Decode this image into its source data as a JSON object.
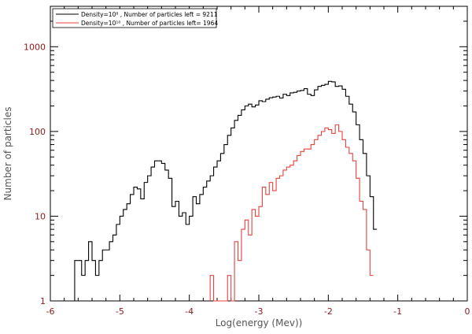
{
  "chart_data": {
    "type": "line",
    "style": "step histogram",
    "xlabel": "Log(energy (Mev))",
    "ylabel": "Number of particles",
    "xlim": [
      -6,
      0
    ],
    "ylim": [
      1,
      3000
    ],
    "yscale": "log",
    "x_ticks": [
      "-6",
      "-5",
      "-4",
      "-3",
      "-2",
      "-1",
      "0"
    ],
    "y_ticks": [
      "1",
      "10",
      "100",
      "1000"
    ],
    "grid": false,
    "legend_position": "top-left",
    "series": [
      {
        "name": "Density=10⁸ , Number of particles left = 9211",
        "color": "#000000",
        "x": [
          -5.65,
          -5.6,
          -5.55,
          -5.5,
          -5.45,
          -5.4,
          -5.35,
          -5.3,
          -5.25,
          -5.2,
          -5.15,
          -5.1,
          -5.05,
          -5.0,
          -4.95,
          -4.9,
          -4.85,
          -4.8,
          -4.75,
          -4.7,
          -4.65,
          -4.6,
          -4.55,
          -4.5,
          -4.45,
          -4.4,
          -4.35,
          -4.3,
          -4.25,
          -4.2,
          -4.15,
          -4.1,
          -4.05,
          -4.0,
          -3.95,
          -3.9,
          -3.85,
          -3.8,
          -3.75,
          -3.7,
          -3.65,
          -3.6,
          -3.55,
          -3.5,
          -3.45,
          -3.4,
          -3.35,
          -3.3,
          -3.25,
          -3.2,
          -3.15,
          -3.1,
          -3.05,
          -3.0,
          -2.95,
          -2.9,
          -2.85,
          -2.8,
          -2.75,
          -2.7,
          -2.65,
          -2.6,
          -2.55,
          -2.5,
          -2.45,
          -2.4,
          -2.35,
          -2.3,
          -2.25,
          -2.2,
          -2.15,
          -2.1,
          -2.05,
          -2.0,
          -1.95,
          -1.9,
          -1.85,
          -1.8,
          -1.75,
          -1.7,
          -1.65,
          -1.6,
          -1.55,
          -1.5,
          -1.45,
          -1.4,
          -1.35
        ],
        "values": [
          3,
          3,
          2,
          3,
          5,
          3,
          2,
          3,
          4,
          4,
          5,
          6,
          8,
          10,
          12,
          14,
          18,
          22,
          21,
          16,
          25,
          30,
          38,
          45,
          45,
          42,
          35,
          28,
          13,
          15,
          10,
          11,
          8,
          10,
          17,
          14,
          18,
          22,
          26,
          30,
          38,
          45,
          55,
          70,
          90,
          110,
          135,
          155,
          180,
          200,
          210,
          195,
          205,
          230,
          225,
          240,
          250,
          255,
          260,
          248,
          275,
          265,
          285,
          290,
          300,
          305,
          320,
          275,
          265,
          310,
          340,
          350,
          360,
          390,
          385,
          340,
          345,
          315,
          260,
          210,
          170,
          120,
          80,
          55,
          30,
          17,
          7
        ],
        "end_x": -1.3
      },
      {
        "name": "Density=10¹⁰ , Number of particles left= 1964",
        "color": "#e8413c",
        "x": [
          -3.7,
          -3.65,
          -3.6,
          -3.55,
          -3.5,
          -3.45,
          -3.4,
          -3.35,
          -3.3,
          -3.25,
          -3.2,
          -3.15,
          -3.1,
          -3.05,
          -3.0,
          -2.95,
          -2.9,
          -2.85,
          -2.8,
          -2.75,
          -2.7,
          -2.65,
          -2.6,
          -2.55,
          -2.5,
          -2.45,
          -2.4,
          -2.35,
          -2.3,
          -2.25,
          -2.2,
          -2.15,
          -2.1,
          -2.05,
          -2.0,
          -1.95,
          -1.9,
          -1.85,
          -1.8,
          -1.75,
          -1.7,
          -1.65,
          -1.6,
          -1.55,
          -1.5,
          -1.45,
          -1.4
        ],
        "values": [
          2,
          1,
          1,
          1,
          1,
          2,
          1,
          5,
          3,
          7,
          9,
          6,
          12,
          10,
          13,
          22,
          18,
          25,
          20,
          28,
          30,
          35,
          38,
          40,
          45,
          52,
          58,
          62,
          62,
          70,
          80,
          90,
          100,
          110,
          105,
          95,
          120,
          100,
          80,
          65,
          55,
          45,
          28,
          15,
          12,
          4,
          2
        ],
        "end_x": -1.35
      }
    ]
  }
}
